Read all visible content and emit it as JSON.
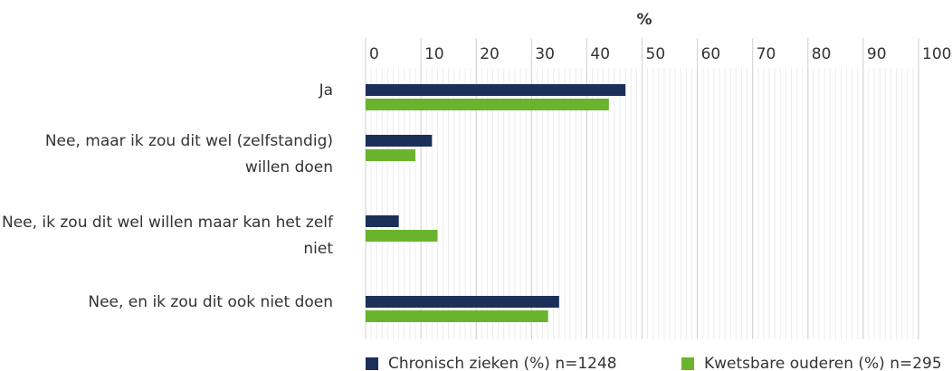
{
  "chart_data": {
    "type": "barh",
    "xlabel": "%",
    "categories": [
      "Ja",
      "Nee, maar ik zou dit wel (zelfstandig) willen doen",
      "Nee, ik zou dit wel willen maar kan het zelf niet",
      "Nee, en ik zou dit ook niet doen"
    ],
    "series": [
      {
        "name": "Chronisch zieken (%) n=1248",
        "color": "#1c2f5a",
        "values": [
          47,
          12,
          6,
          35
        ]
      },
      {
        "name": "Kwetsbare ouderen (%) n=295",
        "color": "#6ab42d",
        "values": [
          44,
          9,
          13,
          33
        ]
      }
    ],
    "xlim": [
      0,
      100
    ],
    "xticks": [
      0,
      10,
      20,
      30,
      40,
      50,
      60,
      70,
      80,
      90,
      100
    ],
    "grid": true,
    "legend": "bottom"
  }
}
